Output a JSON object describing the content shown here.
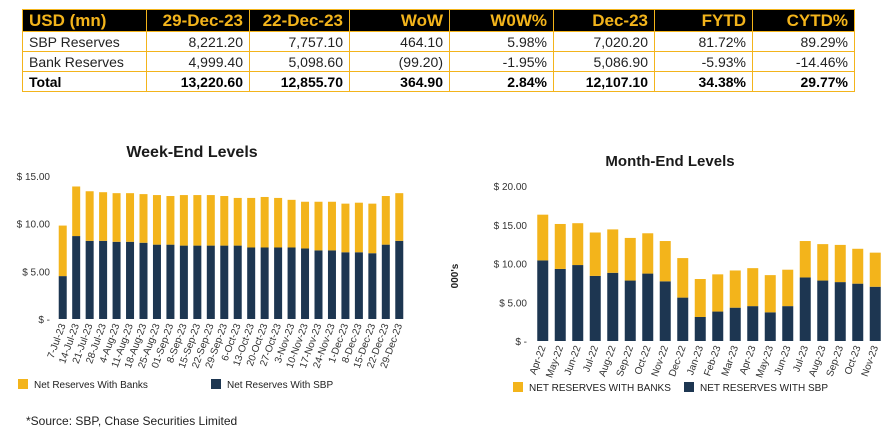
{
  "table": {
    "headers": [
      "USD (mn)",
      "29-Dec-23",
      "22-Dec-23",
      "WoW",
      "W0W%",
      "Dec-23",
      "FYTD",
      "CYTD%"
    ],
    "rows": [
      [
        "SBP Reserves",
        "8,221.20",
        "7,757.10",
        "464.10",
        "5.98%",
        "7,020.20",
        "81.72%",
        "89.29%"
      ],
      [
        "Bank Reserves",
        "4,999.40",
        "5,098.60",
        "(99.20)",
        "-1.95%",
        "5,086.90",
        "-5.93%",
        "-14.46%"
      ],
      [
        "Total",
        "13,220.60",
        "12,855.70",
        "364.90",
        "2.84%",
        "12,107.10",
        "34.38%",
        "29.77%"
      ]
    ]
  },
  "colors": {
    "banks": "#F3B41B",
    "sbp": "#1D3651",
    "header_bg": "#000000",
    "header_text": "#F3B41B",
    "border": "#F3B41B"
  },
  "chart_data": [
    {
      "type": "bar",
      "stacked": true,
      "title": "Week-End Levels",
      "categories": [
        "7-Jul-23",
        "14-Jul-23",
        "21-Jul-23",
        "28-Jul-23",
        "4-Aug-23",
        "11-Aug-23",
        "18-Aug-23",
        "25-Aug-23",
        "01-Sep-23",
        "8-Sep-23",
        "15-Sep-23",
        "22-Sep-23",
        "29-Sep-23",
        "6-Oct-23",
        "13-Oct-23",
        "20-Oct-23",
        "27-Oct-23",
        "3-Nov-23",
        "10-Nov-23",
        "17-Nov-23",
        "24-Nov-23",
        "1-Dec-23",
        "8-Dec-23",
        "15-Dec-23",
        "22-Dec-23",
        "29-Dec-23"
      ],
      "series": [
        {
          "name": "Net Reserves With SBP",
          "values": [
            4.5,
            8.7,
            8.2,
            8.2,
            8.1,
            8.1,
            8.0,
            7.8,
            7.8,
            7.7,
            7.7,
            7.7,
            7.7,
            7.7,
            7.5,
            7.5,
            7.5,
            7.5,
            7.4,
            7.2,
            7.2,
            7.0,
            7.0,
            6.9,
            7.8,
            8.2
          ]
        },
        {
          "name": "Net Reserves With Banks",
          "values": [
            5.3,
            5.2,
            5.2,
            5.1,
            5.1,
            5.1,
            5.1,
            5.2,
            5.1,
            5.3,
            5.3,
            5.3,
            5.2,
            5.0,
            5.2,
            5.3,
            5.2,
            5.0,
            4.9,
            5.1,
            5.1,
            5.1,
            5.2,
            5.2,
            5.1,
            5.0
          ]
        }
      ],
      "ytick_labels": [
        "$ -",
        "$ 5.00",
        "$ 10.00",
        "$ 15.00"
      ],
      "ylim": [
        0,
        15
      ],
      "legend": [
        "Net Reserves With Banks",
        "Net Reserves With SBP"
      ],
      "legend_position": "bottom",
      "ylabel": ""
    },
    {
      "type": "bar",
      "stacked": true,
      "title": "Month-End Levels",
      "categories": [
        "Apr-22",
        "May-22",
        "Jun-22",
        "Jul-22",
        "Aug-22",
        "Sep-22",
        "Oct-22",
        "Nov-22",
        "Dec-22",
        "Jan-23",
        "Feb-23",
        "Mar-23",
        "Apr-23",
        "May-23",
        "Jun-23",
        "Jul-23",
        "Aug-23",
        "Sep-23",
        "Oct-23",
        "Nov-23"
      ],
      "series": [
        {
          "name": "NET RESERVES WITH SBP",
          "values": [
            10.4,
            9.3,
            9.8,
            8.4,
            8.8,
            7.8,
            8.7,
            7.7,
            5.6,
            3.1,
            3.8,
            4.3,
            4.5,
            3.7,
            4.5,
            8.2,
            7.8,
            7.6,
            7.4,
            7.0
          ]
        },
        {
          "name": "NET RESERVES WITH BANKS",
          "values": [
            5.9,
            5.8,
            5.4,
            5.6,
            5.6,
            5.5,
            5.2,
            5.2,
            5.1,
            4.9,
            4.8,
            4.8,
            4.9,
            4.8,
            4.7,
            4.7,
            4.7,
            4.8,
            4.5,
            4.4
          ]
        }
      ],
      "ytick_labels": [
        "$ -",
        "$ 5.00",
        "$ 10.00",
        "$ 15.00",
        "$ 20.00"
      ],
      "ylim": [
        0,
        20
      ],
      "ylabel": "000's",
      "legend": [
        "NET RESERVES WITH BANKS",
        "NET RESERVES WITH SBP"
      ],
      "legend_position": "bottom"
    }
  ],
  "source_note": "*Source: SBP, Chase Securities Limited"
}
